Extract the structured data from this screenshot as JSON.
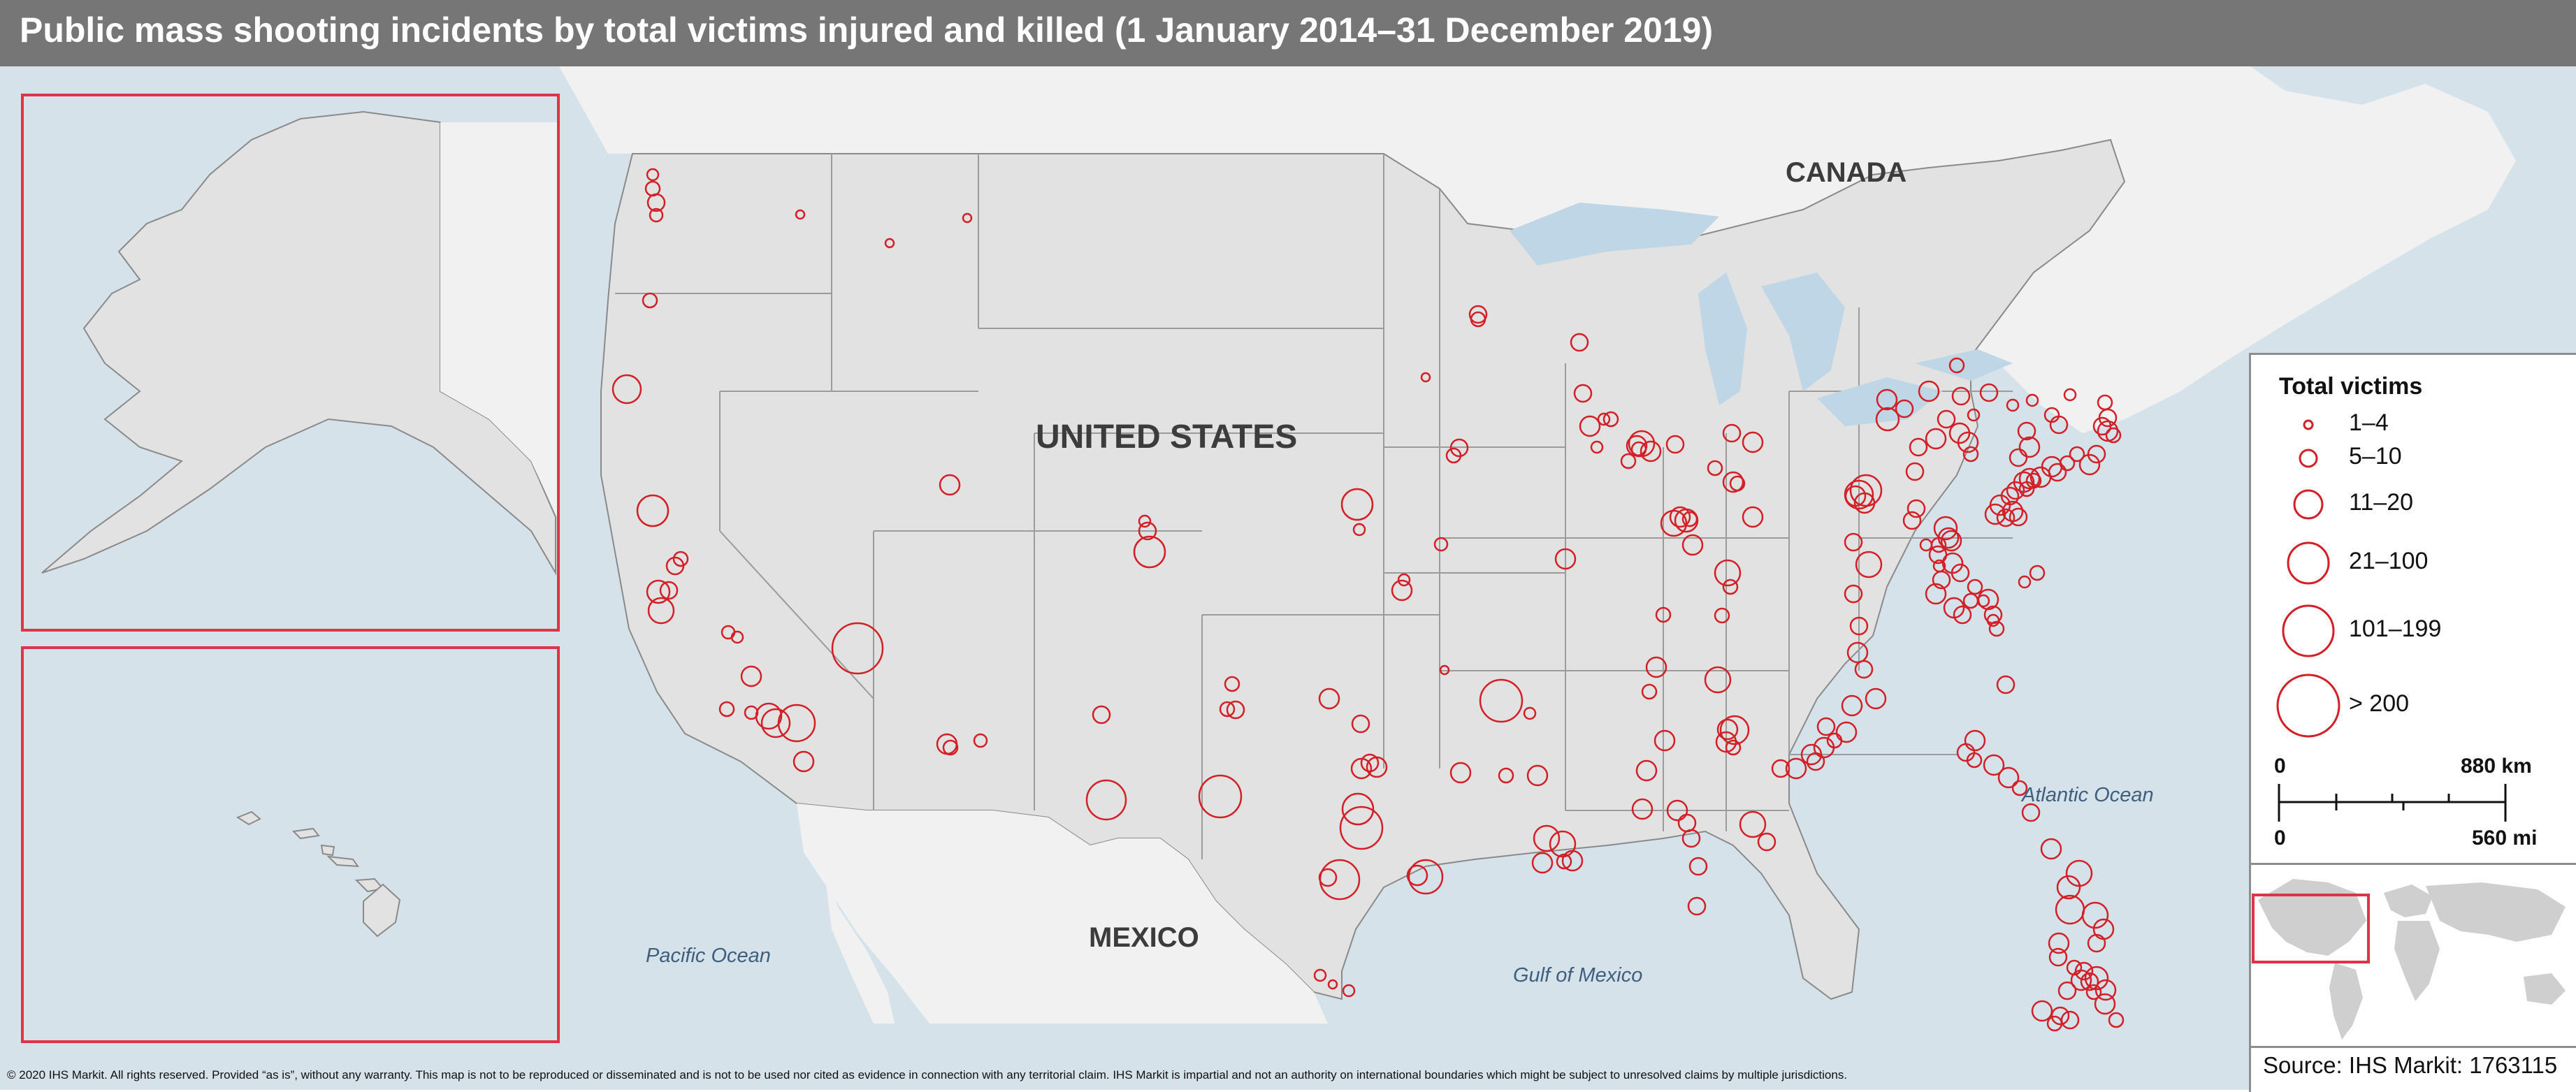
{
  "title": "Public mass shooting incidents by total victims injured and killed (1 January 2014–31 December 2019)",
  "labels": {
    "canada": "CANADA",
    "usa": "UNITED STATES",
    "mexico": "MEXICO",
    "pacific": "Pacific Ocean",
    "atlantic": "Atlantic Ocean",
    "gulf": "Gulf of Mexico"
  },
  "legend": {
    "title": "Total victims",
    "items": [
      {
        "label": "1–4",
        "symbol": "smallest"
      },
      {
        "label": "5–10",
        "symbol": "small"
      },
      {
        "label": "11–20",
        "symbol": "medium"
      },
      {
        "label": "21–100",
        "symbol": "large"
      },
      {
        "label": "101–199",
        "symbol": "larger"
      },
      {
        "label": "> 200",
        "symbol": "largest"
      }
    ],
    "scale": {
      "km_start": "0",
      "km_end": "880 km",
      "mi_start": "0",
      "mi_end": "560 mi"
    }
  },
  "copyright": "© 2020 IHS Markit. All rights reserved. Provided “as is”, without any warranty. This map is not to be reproduced or disseminated and is not to be used nor cited as evidence in connection with any territorial claim. IHS Markit is impartial and not an authority on international boundaries which might be subject to unresolved claims by multiple jurisdictions.",
  "source": "Source: IHS Markit: 1763115",
  "colors": {
    "marker": "#d31f26",
    "land": "#e2e2e2",
    "water": "#d6e2ea",
    "frame": "#e0334a"
  }
}
